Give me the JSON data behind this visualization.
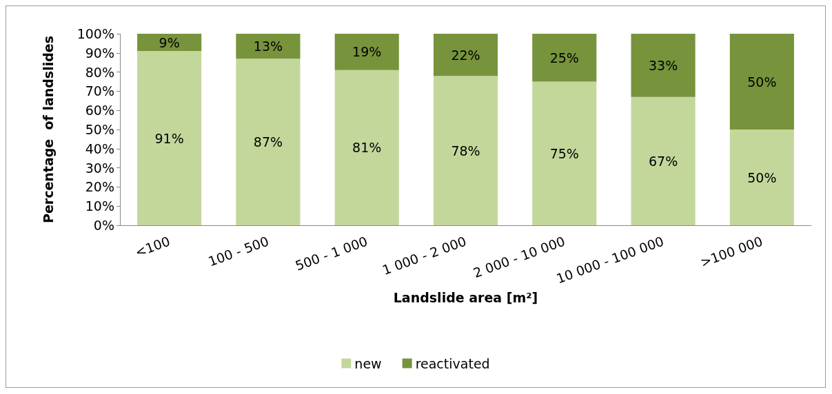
{
  "chart_data": {
    "type": "bar",
    "stacked": true,
    "xlabel": "Landslide area [m²]",
    "ylabel": "Percentage  of landslides",
    "categories": [
      "<100",
      "100 - 500",
      "500 - 1 000",
      "1 000 - 2 000",
      "2 000 - 10 000",
      "10 000 - 100 000",
      ">100 000"
    ],
    "series": [
      {
        "name": "new",
        "color": "#c4d79b",
        "values": [
          91,
          87,
          81,
          78,
          75,
          67,
          50
        ],
        "value_labels": [
          "91%",
          "87%",
          "81%",
          "78%",
          "75%",
          "67%",
          "50%"
        ]
      },
      {
        "name": "reactivated",
        "color": "#77933c",
        "values": [
          9,
          13,
          19,
          22,
          25,
          33,
          50
        ],
        "value_labels": [
          "9%",
          "13%",
          "19%",
          "22%",
          "25%",
          "33%",
          "50%"
        ]
      }
    ],
    "ylim": [
      0,
      100
    ],
    "yticks": [
      {
        "value": 0,
        "label": "0%"
      },
      {
        "value": 10,
        "label": "10%"
      },
      {
        "value": 20,
        "label": "20%"
      },
      {
        "value": 30,
        "label": "30%"
      },
      {
        "value": 40,
        "label": "40%"
      },
      {
        "value": 50,
        "label": "50%"
      },
      {
        "value": 60,
        "label": "60%"
      },
      {
        "value": 70,
        "label": "70%"
      },
      {
        "value": 80,
        "label": "80%"
      },
      {
        "value": 90,
        "label": "90%"
      },
      {
        "value": 100,
        "label": "100%"
      }
    ],
    "grid": false,
    "legend": "bottom"
  }
}
